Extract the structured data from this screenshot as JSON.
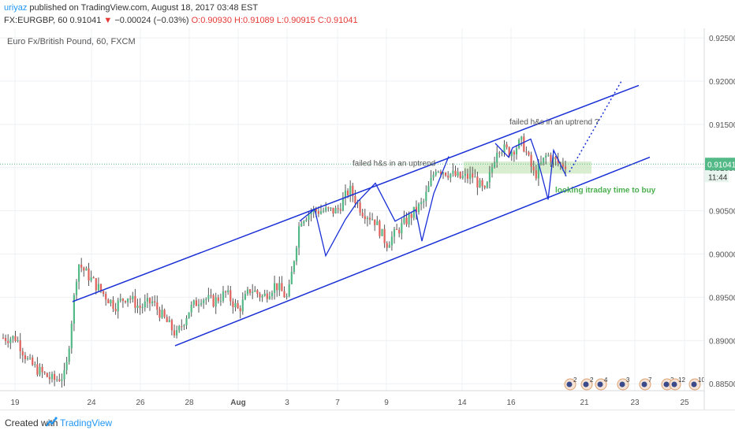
{
  "header": {
    "author": "uriyaz",
    "published": "published on TradingView.com, August 18, 2017 03:48 EST",
    "symbol_line_start": "FX:EURGBP, 60  0.91041",
    "change_arrow": "▼",
    "change_text": "−0.00024 (−0.03%)",
    "ohlc_open": "O:0.90930",
    "ohlc_high": "H:0.91089",
    "ohlc_low": "L:0.90915",
    "ohlc_close": "C:0.91041"
  },
  "chart_data": {
    "type": "candlestick",
    "title": "Euro Fx/British Pound, 60, FXCM",
    "y_ticks": [
      "0.92500",
      "0.92000",
      "0.91500",
      "0.91000",
      "0.90500",
      "0.90000",
      "0.89500",
      "0.89000",
      "0.88500"
    ],
    "ylim": [
      0.8842,
      0.9261
    ],
    "x_ticks": [
      "19",
      "24",
      "26",
      "28",
      "Aug",
      "3",
      "7",
      "9",
      "14",
      "16",
      "21",
      "23",
      "25"
    ],
    "last_price": "0.91041",
    "countdown": "11:44",
    "price_path": [
      [
        "2017-07-19",
        0.8903
      ],
      [
        "2017-07-19",
        0.8875
      ],
      [
        "2017-07-20",
        0.8863
      ],
      [
        "2017-07-20",
        0.8854
      ],
      [
        "2017-07-21",
        0.886
      ],
      [
        "2017-07-21",
        0.899
      ],
      [
        "2017-07-24",
        0.8972
      ],
      [
        "2017-07-24",
        0.8955
      ],
      [
        "2017-07-25",
        0.894
      ],
      [
        "2017-07-25",
        0.8952
      ],
      [
        "2017-07-26",
        0.8938
      ],
      [
        "2017-07-26",
        0.8945
      ],
      [
        "2017-07-27",
        0.8925
      ],
      [
        "2017-07-27",
        0.8906
      ],
      [
        "2017-07-28",
        0.8935
      ],
      [
        "2017-07-28",
        0.895
      ],
      [
        "2017-07-31",
        0.8945
      ],
      [
        "2017-07-31",
        0.8955
      ],
      [
        "2017-08-01",
        0.8935
      ],
      [
        "2017-08-01",
        0.896
      ],
      [
        "2017-08-02",
        0.895
      ],
      [
        "2017-08-02",
        0.8965
      ],
      [
        "2017-08-03",
        0.8948
      ],
      [
        "2017-08-03",
        0.904
      ],
      [
        "2017-08-04",
        0.905
      ],
      [
        "2017-08-07",
        0.905
      ],
      [
        "2017-08-07",
        0.9075
      ],
      [
        "2017-08-08",
        0.905
      ],
      [
        "2017-08-08",
        0.904
      ],
      [
        "2017-08-09",
        0.9012
      ],
      [
        "2017-08-10",
        0.9045
      ],
      [
        "2017-08-10",
        0.906
      ],
      [
        "2017-08-11",
        0.91
      ],
      [
        "2017-08-14",
        0.9088
      ],
      [
        "2017-08-14",
        0.909
      ],
      [
        "2017-08-15",
        0.907
      ],
      [
        "2017-08-15",
        0.9125
      ],
      [
        "2017-08-16",
        0.9118
      ],
      [
        "2017-08-16",
        0.913
      ],
      [
        "2017-08-17",
        0.909
      ],
      [
        "2017-08-17",
        0.9115
      ],
      [
        "2017-08-18",
        0.9104
      ]
    ],
    "annotations": [
      {
        "text": "failed h&s in an uptrend",
        "color": "#555555"
      },
      {
        "text": "failed h&s in an uptrend ?",
        "color": "#555555"
      },
      {
        "text": "looking itraday time to buy",
        "color": "#4caf50"
      }
    ],
    "event_badges": [
      "2",
      "2",
      "4",
      "3",
      "7",
      "2",
      "12",
      "10"
    ],
    "colors": {
      "up": "#53b987",
      "down": "#e0605b",
      "wick": "#555555",
      "channel": "#1a2fd6",
      "zone": "#cfe8c4",
      "price_line": "#53b987"
    }
  },
  "footer": {
    "created": "Created with",
    "brand": "TradingView"
  }
}
